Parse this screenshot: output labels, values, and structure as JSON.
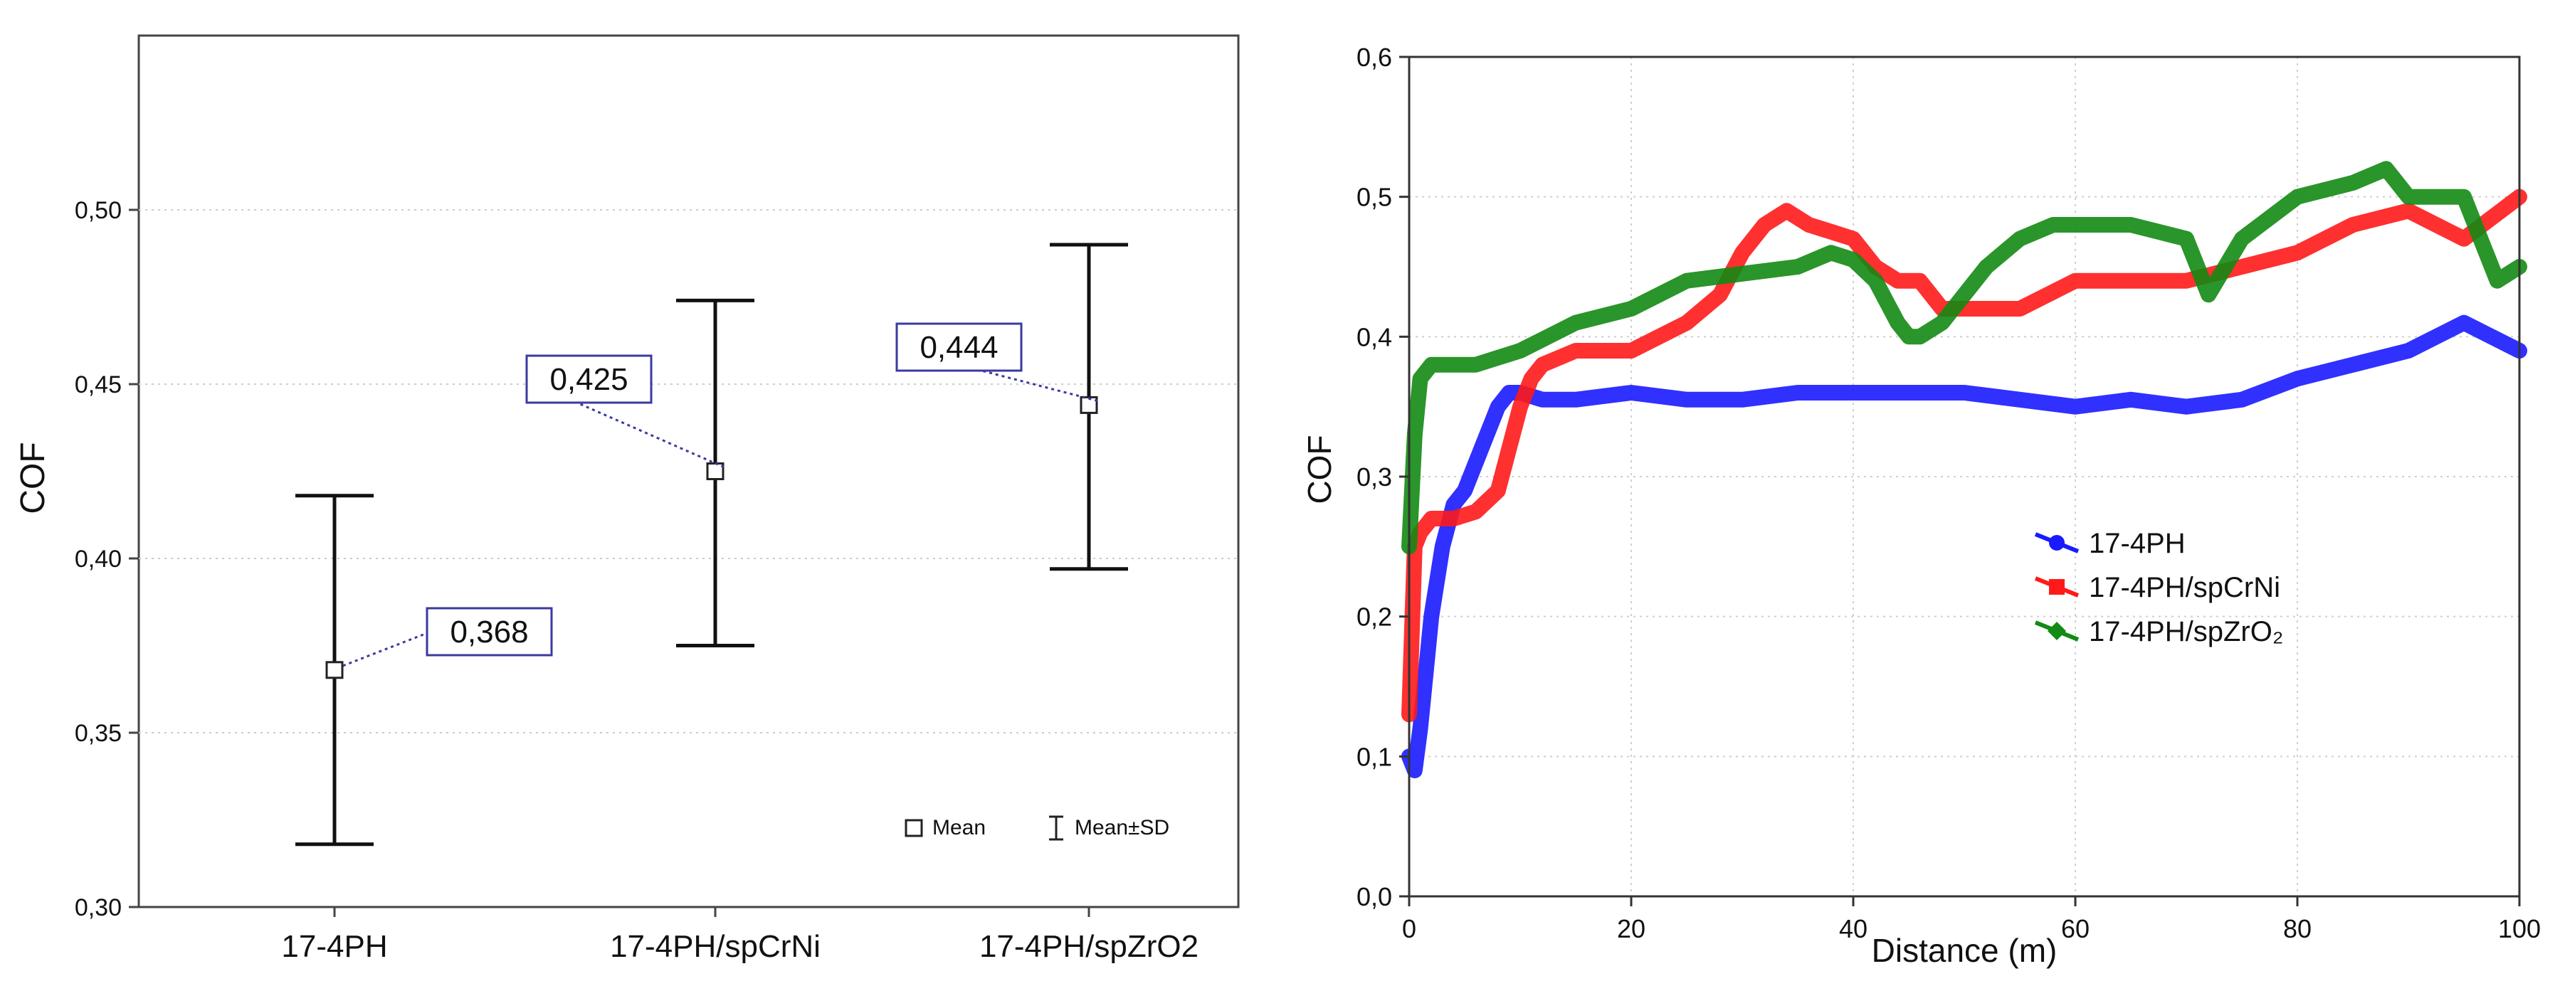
{
  "chart_data": [
    {
      "type": "errorbar",
      "ylabel": "COF",
      "ylim": [
        0.3,
        0.55
      ],
      "yticks": [
        "0,30",
        "0,35",
        "0,40",
        "0,45",
        "0,50"
      ],
      "ytick_values": [
        0.3,
        0.35,
        0.4,
        0.45,
        0.5
      ],
      "categories": [
        "17-4PH",
        "17-4PH/spCrNi",
        "17-4PH/spZrO2"
      ],
      "mean": [
        0.368,
        0.425,
        0.444
      ],
      "lower": [
        0.318,
        0.375,
        0.397
      ],
      "upper": [
        0.418,
        0.474,
        0.49
      ],
      "value_labels": [
        "0,368",
        "0,425",
        "0,444"
      ],
      "legend": {
        "mean": "Mean",
        "sd": "Mean±SD",
        "position": "bottom-right"
      },
      "grid": true,
      "colors": {
        "label_box": "#3a3aa0",
        "bars": "#111111",
        "grid": "#cccccc"
      }
    },
    {
      "type": "line",
      "xlabel": "Distance (m)",
      "ylabel": "COF",
      "xlim": [
        0,
        100
      ],
      "ylim": [
        0.0,
        0.6
      ],
      "xticks": [
        "0",
        "20",
        "40",
        "60",
        "80",
        "100"
      ],
      "xtick_values": [
        0,
        20,
        40,
        60,
        80,
        100
      ],
      "yticks": [
        "0,0",
        "0,1",
        "0,2",
        "0,3",
        "0,4",
        "0,5",
        "0,6"
      ],
      "ytick_values": [
        0.0,
        0.1,
        0.2,
        0.3,
        0.4,
        0.5,
        0.6
      ],
      "grid": true,
      "legend_position": "center-right",
      "series": [
        {
          "name": "17-4PH",
          "color": "#1a1aff",
          "marker": "circle",
          "x": [
            0,
            0.5,
            1,
            2,
            3,
            4,
            5,
            6,
            7,
            8,
            9,
            10,
            12,
            15,
            20,
            25,
            30,
            35,
            40,
            45,
            50,
            55,
            60,
            65,
            70,
            75,
            80,
            85,
            90,
            95,
            100
          ],
          "y": [
            0.1,
            0.09,
            0.12,
            0.2,
            0.25,
            0.28,
            0.29,
            0.31,
            0.33,
            0.35,
            0.36,
            0.36,
            0.355,
            0.355,
            0.36,
            0.355,
            0.355,
            0.36,
            0.36,
            0.36,
            0.36,
            0.355,
            0.35,
            0.355,
            0.35,
            0.355,
            0.37,
            0.38,
            0.39,
            0.41,
            0.39
          ]
        },
        {
          "name": "17-4PH/spCrNi",
          "color": "#ff1a1a",
          "marker": "square",
          "x": [
            0,
            0.5,
            1,
            2,
            4,
            6,
            8,
            9,
            10,
            11,
            12,
            15,
            20,
            25,
            28,
            30,
            32,
            34,
            36,
            38,
            40,
            42,
            44,
            46,
            48,
            50,
            55,
            60,
            65,
            70,
            75,
            80,
            85,
            90,
            95,
            100
          ],
          "y": [
            0.13,
            0.25,
            0.26,
            0.27,
            0.27,
            0.275,
            0.29,
            0.32,
            0.35,
            0.37,
            0.38,
            0.39,
            0.39,
            0.41,
            0.43,
            0.46,
            0.48,
            0.49,
            0.48,
            0.475,
            0.47,
            0.45,
            0.44,
            0.44,
            0.42,
            0.42,
            0.42,
            0.44,
            0.44,
            0.44,
            0.45,
            0.46,
            0.48,
            0.49,
            0.47,
            0.5
          ]
        },
        {
          "name": "17-4PH/spZrO₂",
          "color": "#138a13",
          "marker": "diamond",
          "x": [
            0,
            0.5,
            1,
            2,
            4,
            6,
            8,
            10,
            15,
            20,
            25,
            30,
            35,
            38,
            40,
            42,
            44,
            45,
            46,
            48,
            50,
            52,
            55,
            58,
            60,
            65,
            70,
            72,
            75,
            80,
            85,
            88,
            90,
            95,
            98,
            100
          ],
          "y": [
            0.25,
            0.33,
            0.37,
            0.38,
            0.38,
            0.38,
            0.385,
            0.39,
            0.41,
            0.42,
            0.44,
            0.445,
            0.45,
            0.46,
            0.455,
            0.44,
            0.41,
            0.4,
            0.4,
            0.41,
            0.43,
            0.45,
            0.47,
            0.48,
            0.48,
            0.48,
            0.47,
            0.43,
            0.47,
            0.5,
            0.51,
            0.52,
            0.5,
            0.5,
            0.44,
            0.45
          ]
        }
      ]
    }
  ]
}
